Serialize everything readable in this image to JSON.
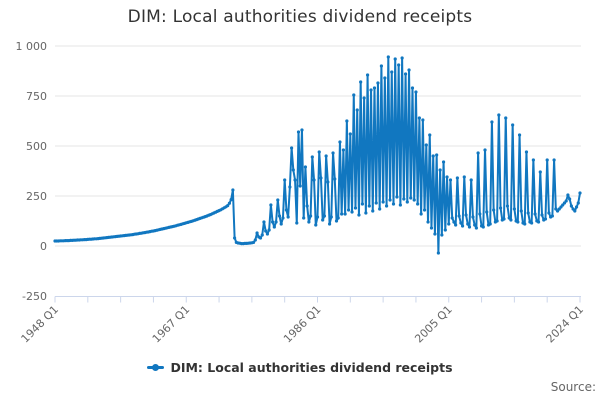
{
  "header": {
    "title": "DIM: Local authorities dividend receipts"
  },
  "legend": {
    "label": "DIM: Local authorities dividend receipts"
  },
  "footer": {
    "source_label": "Source:"
  },
  "colors": {
    "series": "#1177C0",
    "grid": "#e6e6e6",
    "axis": "#ccd6eb",
    "tick_label": "#666666",
    "title_text": "#333333"
  },
  "chart_data": {
    "type": "line",
    "title": "DIM: Local authorities dividend receipts",
    "xlabel": "",
    "ylabel": "",
    "x_start": "1948 Q1",
    "x_end": "2024 Q1",
    "frequency": "quarterly",
    "x_tick_labels": [
      "1948 Q1",
      "1967 Q1",
      "1986 Q1",
      "2005 Q1",
      "2024 Q1"
    ],
    "x_label_interval_quarters": 76,
    "x_minor_tick_interval_quarters": 19,
    "ylim": [
      -250,
      1000
    ],
    "grid": true,
    "legend_position": "bottom",
    "y_ticks": [
      {
        "value": 1000,
        "label": "1 000"
      },
      {
        "value": 750,
        "label": "750"
      },
      {
        "value": 500,
        "label": "500"
      },
      {
        "value": 250,
        "label": "250"
      },
      {
        "value": 0,
        "label": "0"
      },
      {
        "value": -250,
        "label": "-250"
      }
    ],
    "series": [
      {
        "name": "DIM: Local authorities dividend receipts",
        "color": "#1177C0",
        "marker": "circle",
        "values": [
          25,
          25,
          25,
          26,
          26,
          26,
          27,
          27,
          27,
          28,
          28,
          29,
          29,
          30,
          30,
          31,
          31,
          32,
          32,
          33,
          34,
          34,
          35,
          36,
          36,
          37,
          38,
          39,
          40,
          41,
          42,
          43,
          44,
          45,
          46,
          47,
          48,
          49,
          50,
          51,
          52,
          53,
          54,
          55,
          56,
          57,
          59,
          60,
          61,
          63,
          64,
          66,
          67,
          69,
          70,
          72,
          74,
          75,
          77,
          79,
          81,
          83,
          85,
          87,
          89,
          91,
          93,
          95,
          97,
          99,
          101,
          104,
          106,
          108,
          111,
          113,
          116,
          118,
          121,
          123,
          126,
          129,
          132,
          135,
          138,
          141,
          144,
          147,
          150,
          154,
          157,
          161,
          165,
          169,
          173,
          177,
          181,
          186,
          191,
          196,
          202,
          214,
          232,
          280,
          40,
          18,
          15,
          14,
          12,
          12,
          13,
          13,
          14,
          15,
          16,
          18,
          30,
          65,
          45,
          40,
          55,
          120,
          75,
          60,
          80,
          205,
          120,
          95,
          120,
          230,
          150,
          110,
          140,
          330,
          180,
          145,
          295,
          490,
          380,
          330,
          115,
          570,
          300,
          580,
          140,
          395,
          200,
          120,
          150,
          445,
          330,
          105,
          145,
          470,
          340,
          130,
          150,
          450,
          320,
          110,
          145,
          465,
          335,
          125,
          140,
          520,
          160,
          480,
          160,
          625,
          180,
          560,
          170,
          755,
          190,
          680,
          155,
          820,
          210,
          740,
          165,
          855,
          200,
          780,
          175,
          790,
          215,
          815,
          185,
          900,
          220,
          840,
          200,
          945,
          230,
          870,
          210,
          935,
          245,
          905,
          205,
          940,
          235,
          860,
          220,
          880,
          240,
          790,
          230,
          770,
          210,
          640,
          160,
          630,
          180,
          505,
          120,
          555,
          90,
          450,
          60,
          455,
          -35,
          380,
          55,
          420,
          80,
          345,
          110,
          330,
          140,
          120,
          105,
          340,
          150,
          115,
          100,
          345,
          155,
          110,
          95,
          330,
          145,
          105,
          90,
          465,
          160,
          100,
          95,
          480,
          170,
          105,
          110,
          620,
          180,
          120,
          125,
          655,
          190,
          130,
          135,
          640,
          200,
          140,
          130,
          605,
          185,
          125,
          120,
          555,
          175,
          115,
          110,
          470,
          165,
          120,
          115,
          430,
          160,
          125,
          120,
          370,
          155,
          130,
          135,
          430,
          165,
          145,
          150,
          430,
          185,
          175,
          185,
          195,
          205,
          215,
          225,
          255,
          235,
          200,
          185,
          175,
          195,
          215,
          265
        ]
      }
    ]
  }
}
